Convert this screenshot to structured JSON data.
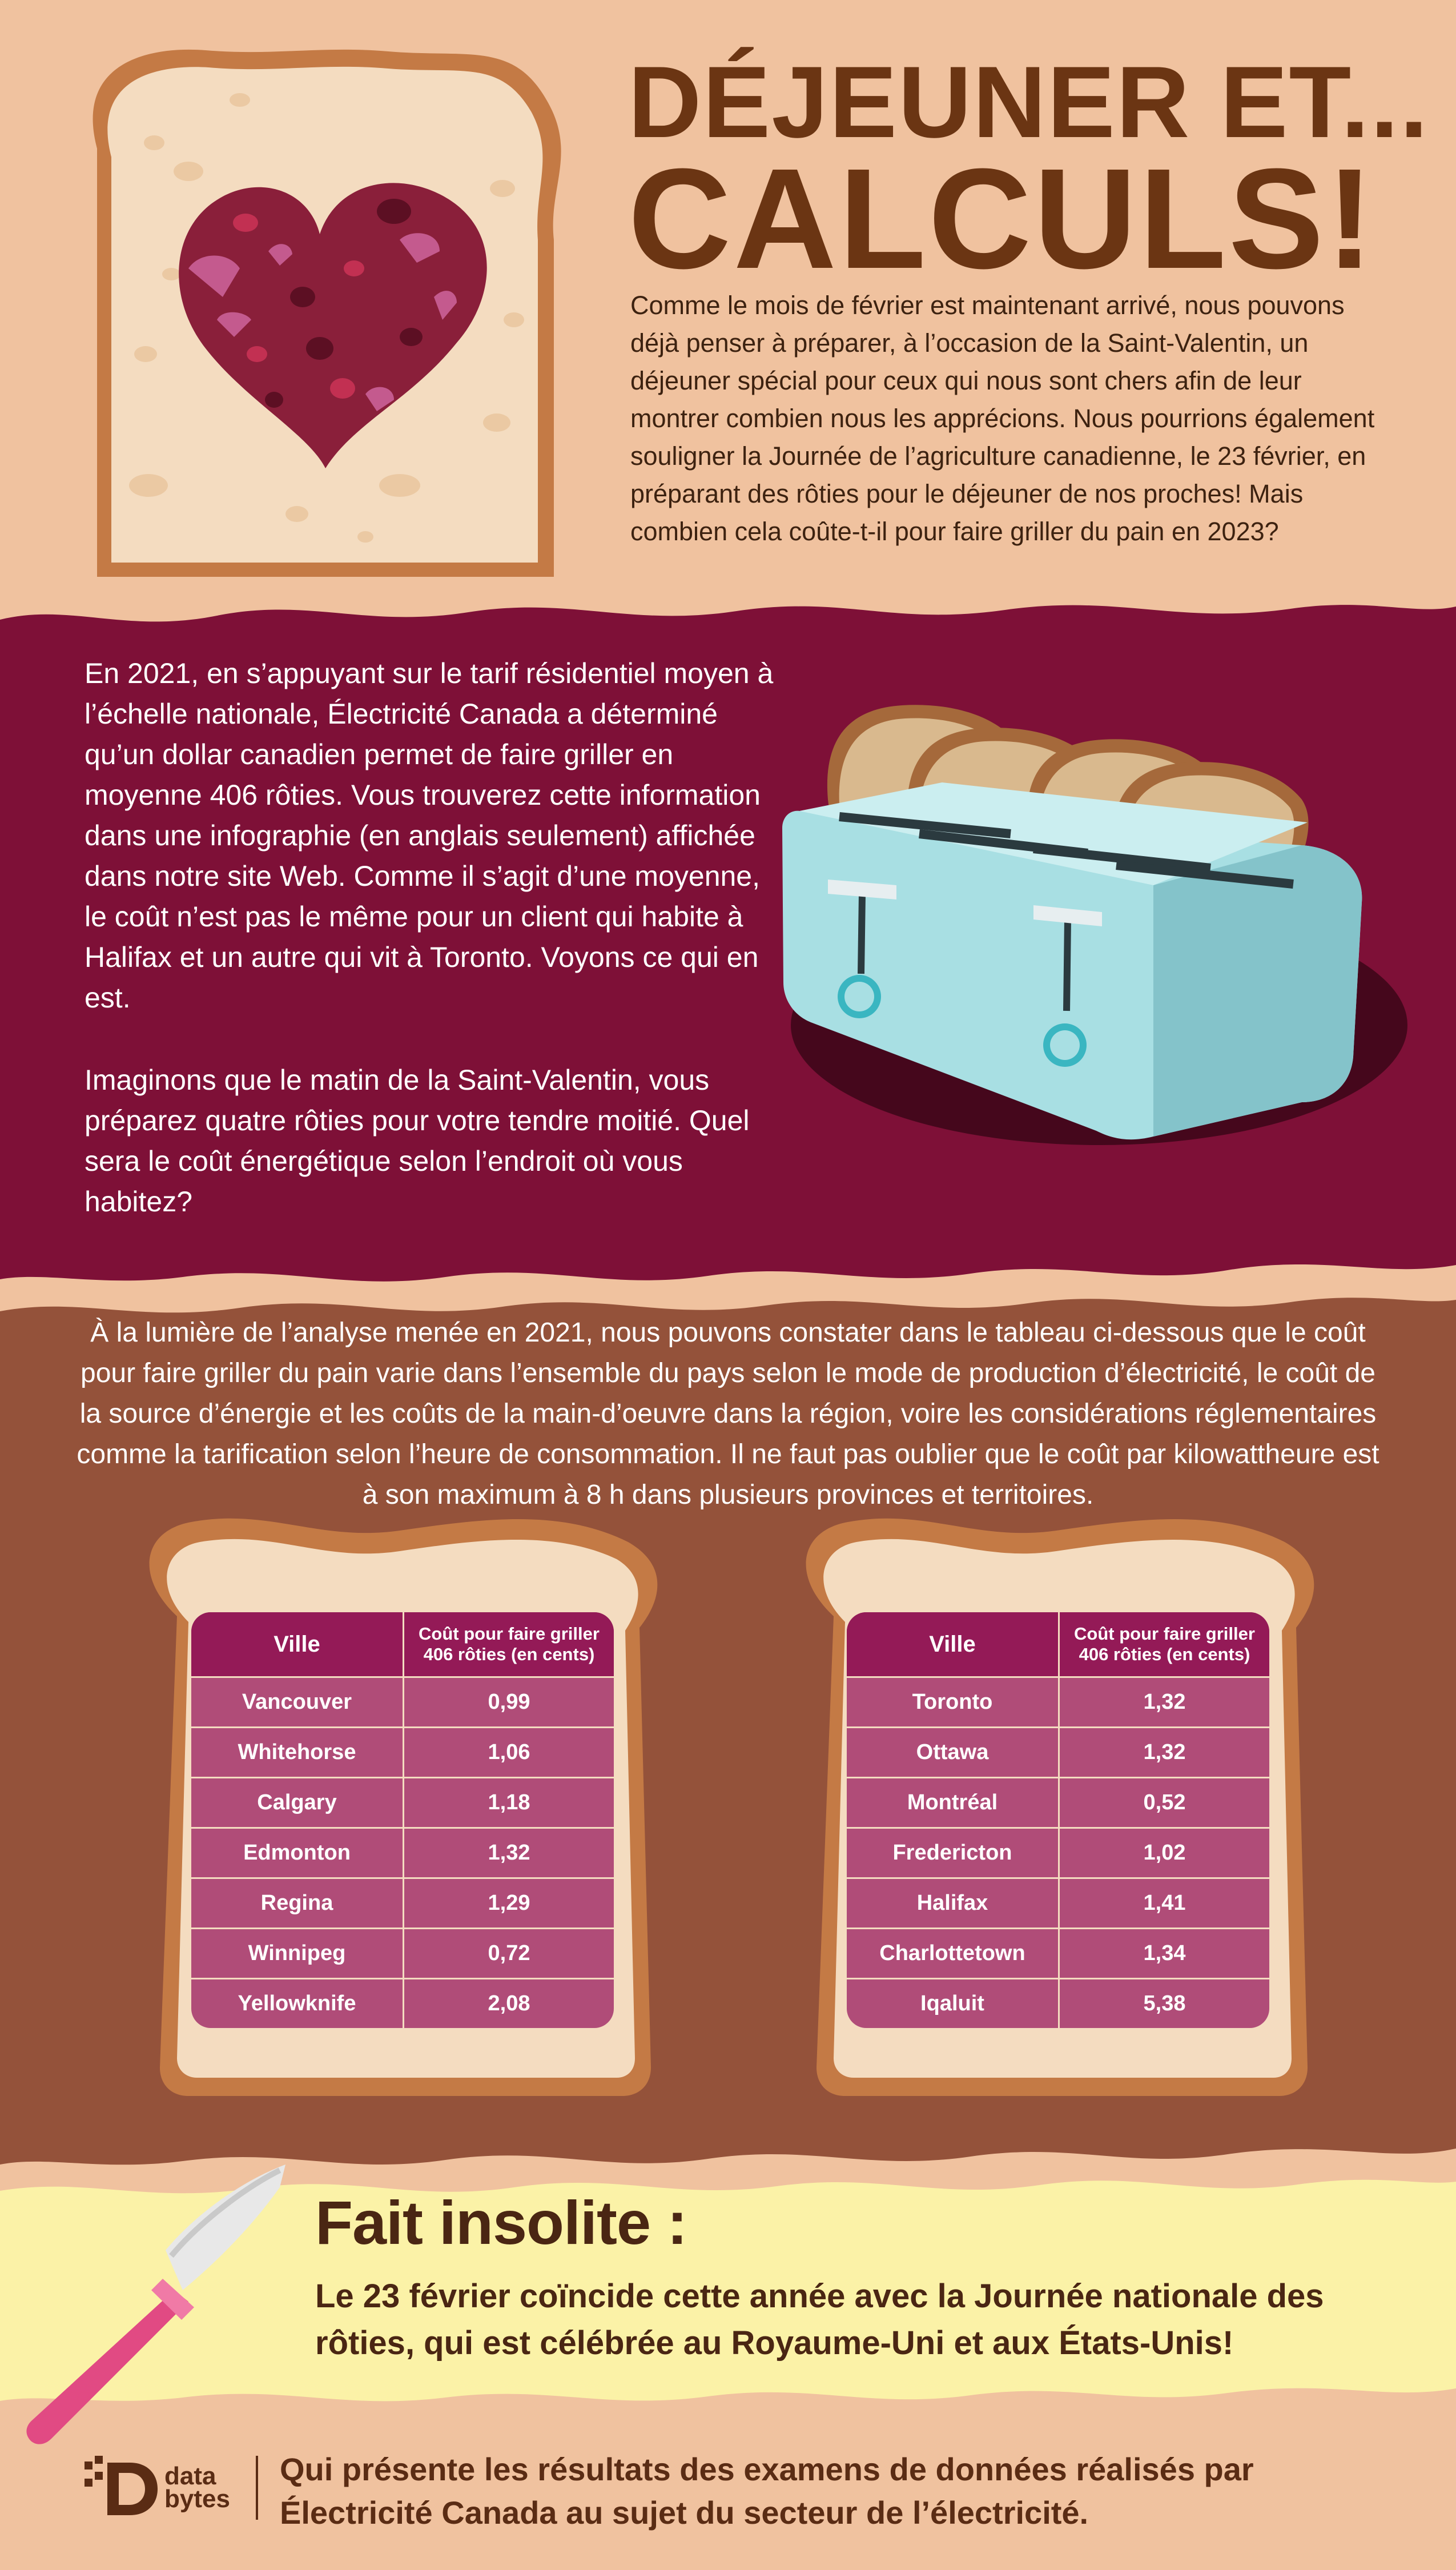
{
  "header": {
    "title_line1": "DÉJEUNER ET...",
    "title_line2": "CALCULS!",
    "intro": "Comme le mois de février est maintenant arrivé, nous pouvons déjà penser à préparer, à l’occasion de la Saint-Valentin, un déjeuner spécial pour ceux qui nous sont chers afin de leur montrer combien nous les apprécions. Nous pourrions également souligner la Journée de l’agriculture canadienne, le 23 février, en préparant des rôties pour le déjeuner de nos proches! Mais combien cela coûte-t-il pour faire griller du pain en 2023?"
  },
  "maroon_section": {
    "paragraph1": "En 2021, en s’appuyant sur le tarif résidentiel moyen à l’échelle nationale, Électricité Canada a déterminé qu’un dollar canadien permet de faire griller en moyenne 406 rôties. Vous trouverez cette information dans une infographie (en anglais seulement) affichée dans notre site Web. Comme il s’agit d’une moyenne, le coût n’est pas le même pour un client qui habite à Halifax et un autre qui vit à Toronto. Voyons ce qui en est.",
    "paragraph2": "Imaginons que le matin de la Saint-Valentin, vous préparez quatre rôties pour votre tendre moitié. Quel sera le coût énergétique selon l’endroit où vous habitez?"
  },
  "brown_section": {
    "paragraph": "À la lumière de l’analyse menée en 2021, nous pouvons constater dans le tableau ci-dessous que le coût pour faire griller du pain varie dans l’ensemble du pays selon le mode de production d’électricité, le coût de la source d’énergie et les coûts de la main-d’oeuvre dans la région, voire les considérations réglementaires comme la tarification selon l’heure de consommation. Il ne faut pas oublier que le coût par kilowattheure est à son maximum à 8 h dans plusieurs provinces et territoires."
  },
  "tables": {
    "header_city": "Ville",
    "header_cost": "Coût pour faire griller 406 rôties (en cents)",
    "left": [
      {
        "city": "Vancouver",
        "cost": "0,99"
      },
      {
        "city": "Whitehorse",
        "cost": "1,06"
      },
      {
        "city": "Calgary",
        "cost": "1,18"
      },
      {
        "city": "Edmonton",
        "cost": "1,32"
      },
      {
        "city": "Regina",
        "cost": "1,29"
      },
      {
        "city": "Winnipeg",
        "cost": "0,72"
      },
      {
        "city": "Yellowknife",
        "cost": "2,08"
      }
    ],
    "right": [
      {
        "city": "Toronto",
        "cost": "1,32"
      },
      {
        "city": "Ottawa",
        "cost": "1,32"
      },
      {
        "city": "Montréal",
        "cost": "0,52"
      },
      {
        "city": "Fredericton",
        "cost": "1,02"
      },
      {
        "city": "Halifax",
        "cost": "1,41"
      },
      {
        "city": "Charlottetown",
        "cost": "1,34"
      },
      {
        "city": "Iqaluit",
        "cost": "5,38"
      }
    ]
  },
  "fact": {
    "title": "Fait insolite :",
    "text": "Le 23 février coïncide cette année avec la Journée nationale des rôties, qui est célébrée au Royaume-Uni et aux États-Unis!"
  },
  "footer": {
    "logo_text": "data bytes",
    "text": "Qui présente les résultats des examens de données réalisés par Électricité Canada au sujet du secteur de l’électricité."
  },
  "colors": {
    "peach": "#f0c29f",
    "maroon": "#7e1037",
    "brown": "#94523a",
    "cream_yellow": "#fbf2a7",
    "title_brown": "#6b3513",
    "table_header": "#941a57",
    "table_cell": "#b04c78"
  },
  "icons": [
    "jam-heart-toast-illustration",
    "toaster-illustration",
    "bread-slice-frame",
    "knife-icon",
    "data-bytes-logo"
  ]
}
